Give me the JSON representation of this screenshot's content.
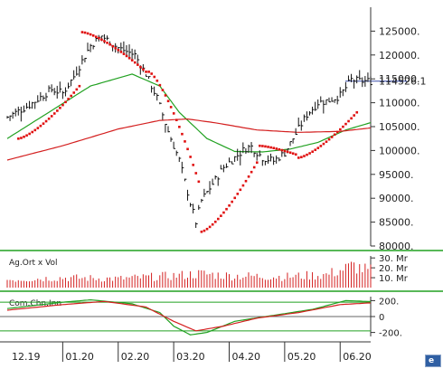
{
  "chart_data": [
    {
      "type": "candlestick",
      "title": "",
      "ylim": [
        80000,
        130000
      ],
      "y_ticks": [
        "125000.",
        "120000.",
        "115000.",
        "110000.",
        "105000.",
        "100000.",
        "95000.",
        "90000.",
        "85000.",
        "80000."
      ],
      "y_tick_values": [
        125000,
        120000,
        115000,
        110000,
        105000,
        100000,
        95000,
        90000,
        85000,
        80000
      ],
      "last_value_label": "114526.1",
      "last_value": 114526.1,
      "x_ticks": [
        "12.19",
        "01.20",
        "02.20",
        "03.20",
        "04.20",
        "05.20",
        "06.20"
      ],
      "x_tick_index": [
        0,
        20,
        40,
        60,
        80,
        100,
        120
      ],
      "n_bars": 132,
      "close_anchors": [
        [
          0,
          107000
        ],
        [
          8,
          109500
        ],
        [
          16,
          112800
        ],
        [
          20,
          112000
        ],
        [
          24,
          115500
        ],
        [
          30,
          122000
        ],
        [
          34,
          124000
        ],
        [
          40,
          121500
        ],
        [
          46,
          120000
        ],
        [
          50,
          116000
        ],
        [
          54,
          111000
        ],
        [
          58,
          104000
        ],
        [
          62,
          98000
        ],
        [
          66,
          89000
        ],
        [
          68,
          85000
        ],
        [
          70,
          89500
        ],
        [
          74,
          93000
        ],
        [
          78,
          96500
        ],
        [
          82,
          98500
        ],
        [
          86,
          100500
        ],
        [
          88,
          100800
        ],
        [
          92,
          98500
        ],
        [
          96,
          97800
        ],
        [
          100,
          99500
        ],
        [
          104,
          103500
        ],
        [
          108,
          107500
        ],
        [
          112,
          110000
        ],
        [
          116,
          110500
        ],
        [
          120,
          111500
        ],
        [
          124,
          114800
        ],
        [
          127,
          114526
        ]
      ],
      "series": [
        {
          "name": "",
          "color": "#21a121",
          "anchors": [
            [
              0,
              102500
            ],
            [
              15,
              108000
            ],
            [
              30,
              113500
            ],
            [
              45,
              116000
            ],
            [
              55,
              113500
            ],
            [
              62,
              108000
            ],
            [
              72,
              102500
            ],
            [
              82,
              99800
            ],
            [
              92,
              99700
            ],
            [
              102,
              100300
            ],
            [
              112,
              101700
            ],
            [
              122,
              104300
            ],
            [
              132,
              106000
            ]
          ]
        },
        {
          "name": "",
          "color": "#d42020",
          "anchors": [
            [
              0,
              98000
            ],
            [
              20,
              101000
            ],
            [
              40,
              104500
            ],
            [
              55,
              106300
            ],
            [
              65,
              106600
            ],
            [
              75,
              105800
            ],
            [
              90,
              104300
            ],
            [
              105,
              103800
            ],
            [
              120,
              104000
            ],
            [
              132,
              104800
            ]
          ]
        }
      ],
      "parabolic_sar": [
        {
          "from": 4,
          "to": 26,
          "start": 102500,
          "end": 113500,
          "side": "below"
        },
        {
          "from": 27,
          "to": 50,
          "start": 124800,
          "end": 116500,
          "side": "above"
        },
        {
          "from": 51,
          "to": 69,
          "start": 116500,
          "end": 93500,
          "side": "above"
        },
        {
          "from": 70,
          "to": 90,
          "start": 83000,
          "end": 97500,
          "side": "below"
        },
        {
          "from": 91,
          "to": 104,
          "start": 101000,
          "end": 99200,
          "side": "above"
        },
        {
          "from": 105,
          "to": 126,
          "start": 98500,
          "end": 108000,
          "side": "below"
        }
      ]
    },
    {
      "type": "bar",
      "title": "Ag.Ort x Vol",
      "y_ticks": [
        "30. Mr",
        "20. Mr",
        "10. Mr"
      ],
      "y_tick_values": [
        30,
        20,
        10
      ],
      "unit": "Mr",
      "ylim": [
        0,
        32
      ],
      "values_anchors": [
        [
          0,
          8
        ],
        [
          20,
          10
        ],
        [
          40,
          9
        ],
        [
          60,
          12
        ],
        [
          70,
          14
        ],
        [
          80,
          12
        ],
        [
          100,
          11
        ],
        [
          115,
          13
        ],
        [
          125,
          22
        ],
        [
          130,
          17
        ]
      ],
      "color": "#d42020"
    },
    {
      "type": "line",
      "title": "Com.Chn.Inn",
      "y_ticks": [
        "200.",
        "0",
        "-200."
      ],
      "y_tick_values": [
        200,
        0,
        -200
      ],
      "ylim": [
        -250,
        250
      ],
      "series": [
        {
          "name": "",
          "color": "#21a121",
          "anchors": [
            [
              0,
              100
            ],
            [
              20,
              180
            ],
            [
              30,
              210
            ],
            [
              45,
              160
            ],
            [
              55,
              50
            ],
            [
              60,
              -120
            ],
            [
              66,
              -230
            ],
            [
              72,
              -200
            ],
            [
              82,
              -60
            ],
            [
              95,
              10
            ],
            [
              110,
              90
            ],
            [
              122,
              200
            ],
            [
              130,
              190
            ]
          ]
        },
        {
          "name": "",
          "color": "#d42020",
          "anchors": [
            [
              0,
              80
            ],
            [
              20,
              150
            ],
            [
              35,
              190
            ],
            [
              50,
              120
            ],
            [
              60,
              -60
            ],
            [
              68,
              -180
            ],
            [
              78,
              -120
            ],
            [
              90,
              -20
            ],
            [
              105,
              50
            ],
            [
              120,
              150
            ],
            [
              130,
              170
            ]
          ]
        }
      ]
    }
  ]
}
